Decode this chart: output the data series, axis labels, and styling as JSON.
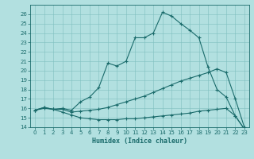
{
  "title": "",
  "xlabel": "Humidex (Indice chaleur)",
  "ylabel": "",
  "background_color": "#b2e0e0",
  "grid_color": "#7fbfbf",
  "line_color": "#1a6b6b",
  "xlim": [
    -0.5,
    23.5
  ],
  "ylim": [
    14,
    27
  ],
  "yticks": [
    14,
    15,
    16,
    17,
    18,
    19,
    20,
    21,
    22,
    23,
    24,
    25,
    26
  ],
  "xticks": [
    0,
    1,
    2,
    3,
    4,
    5,
    6,
    7,
    8,
    9,
    10,
    11,
    12,
    13,
    14,
    15,
    16,
    17,
    18,
    19,
    20,
    21,
    22,
    23
  ],
  "line1_x": [
    0,
    1,
    2,
    3,
    4,
    5,
    6,
    7,
    8,
    9,
    10,
    11,
    12,
    13,
    14,
    15,
    16,
    17,
    18,
    19,
    20,
    21,
    22,
    23
  ],
  "line1_y": [
    15.8,
    16.0,
    15.9,
    16.0,
    15.8,
    16.7,
    17.2,
    18.2,
    20.8,
    20.5,
    21.0,
    23.5,
    23.5,
    24.0,
    26.2,
    25.8,
    25.0,
    24.3,
    23.5,
    20.4,
    18.0,
    17.2,
    15.2,
    13.8
  ],
  "line2_x": [
    0,
    1,
    2,
    3,
    4,
    5,
    6,
    7,
    8,
    9,
    10,
    11,
    12,
    13,
    14,
    15,
    16,
    17,
    18,
    19,
    20,
    21,
    22,
    23
  ],
  "line2_y": [
    15.8,
    16.1,
    15.9,
    15.9,
    15.6,
    15.7,
    15.8,
    15.9,
    16.1,
    16.4,
    16.7,
    17.0,
    17.3,
    17.7,
    18.1,
    18.5,
    18.9,
    19.2,
    19.5,
    19.8,
    20.2,
    19.8,
    17.0,
    14.0
  ],
  "line3_x": [
    0,
    1,
    2,
    3,
    4,
    5,
    6,
    7,
    8,
    9,
    10,
    11,
    12,
    13,
    14,
    15,
    16,
    17,
    18,
    19,
    20,
    21,
    22,
    23
  ],
  "line3_y": [
    15.8,
    16.1,
    15.9,
    15.6,
    15.3,
    15.0,
    14.9,
    14.8,
    14.8,
    14.8,
    14.9,
    14.9,
    15.0,
    15.1,
    15.2,
    15.3,
    15.4,
    15.5,
    15.7,
    15.8,
    15.9,
    16.0,
    15.2,
    13.8
  ],
  "tick_labelsize": 5,
  "xlabel_fontsize": 6,
  "marker_size": 3,
  "linewidth": 0.8
}
